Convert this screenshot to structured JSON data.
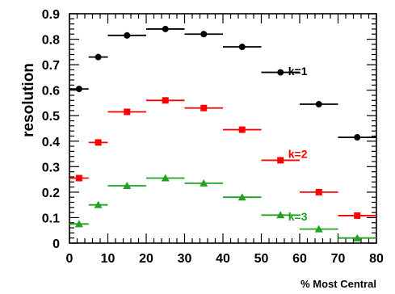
{
  "chart_data": {
    "type": "scatter",
    "title": "",
    "xlabel": "% Most Central",
    "ylabel": "resolution",
    "xlim": [
      0,
      80
    ],
    "ylim": [
      0,
      0.9
    ],
    "x_ticks": [
      "0",
      "10",
      "20",
      "30",
      "40",
      "50",
      "60",
      "70",
      "80"
    ],
    "y_ticks": [
      "0",
      "0.1",
      "0.2",
      "0.3",
      "0.4",
      "0.5",
      "0.6",
      "0.7",
      "0.8",
      "0.9"
    ],
    "grid": false,
    "legend": "none",
    "series": [
      {
        "name": "k=1",
        "color": "#000000",
        "marker": "circle",
        "points": [
          {
            "x": 2.5,
            "xerr": 2.5,
            "y": 0.605
          },
          {
            "x": 7.5,
            "xerr": 2.5,
            "y": 0.73
          },
          {
            "x": 15,
            "xerr": 5,
            "y": 0.815
          },
          {
            "x": 25,
            "xerr": 5,
            "y": 0.84
          },
          {
            "x": 35,
            "xerr": 5,
            "y": 0.82
          },
          {
            "x": 45,
            "xerr": 5,
            "y": 0.77
          },
          {
            "x": 55,
            "xerr": 5,
            "y": 0.67
          },
          {
            "x": 65,
            "xerr": 5,
            "y": 0.545
          },
          {
            "x": 75,
            "xerr": 5,
            "y": 0.415
          }
        ]
      },
      {
        "name": "k=2",
        "color": "#ff0000",
        "marker": "square",
        "points": [
          {
            "x": 2.5,
            "xerr": 2.5,
            "y": 0.255
          },
          {
            "x": 7.5,
            "xerr": 2.5,
            "y": 0.395
          },
          {
            "x": 15,
            "xerr": 5,
            "y": 0.515
          },
          {
            "x": 25,
            "xerr": 5,
            "y": 0.56
          },
          {
            "x": 35,
            "xerr": 5,
            "y": 0.53
          },
          {
            "x": 45,
            "xerr": 5,
            "y": 0.445
          },
          {
            "x": 55,
            "xerr": 5,
            "y": 0.325
          },
          {
            "x": 65,
            "xerr": 5,
            "y": 0.2
          },
          {
            "x": 75,
            "xerr": 5,
            "y": 0.108
          }
        ]
      },
      {
        "name": "k=3",
        "color": "#22a022",
        "marker": "triangle",
        "points": [
          {
            "x": 2.5,
            "xerr": 2.5,
            "y": 0.075
          },
          {
            "x": 7.5,
            "xerr": 2.5,
            "y": 0.15
          },
          {
            "x": 15,
            "xerr": 5,
            "y": 0.225
          },
          {
            "x": 25,
            "xerr": 5,
            "y": 0.255
          },
          {
            "x": 35,
            "xerr": 5,
            "y": 0.235
          },
          {
            "x": 45,
            "xerr": 5,
            "y": 0.18
          },
          {
            "x": 55,
            "xerr": 5,
            "y": 0.11
          },
          {
            "x": 65,
            "xerr": 5,
            "y": 0.055
          },
          {
            "x": 75,
            "xerr": 5,
            "y": 0.02
          }
        ]
      }
    ],
    "annotations": [
      {
        "text": "k=1",
        "series": 0,
        "x": 57,
        "y": 0.675
      },
      {
        "text": "k=2",
        "series": 1,
        "x": 57,
        "y": 0.35
      },
      {
        "text": "k=3",
        "series": 2,
        "x": 57,
        "y": 0.105
      }
    ]
  }
}
